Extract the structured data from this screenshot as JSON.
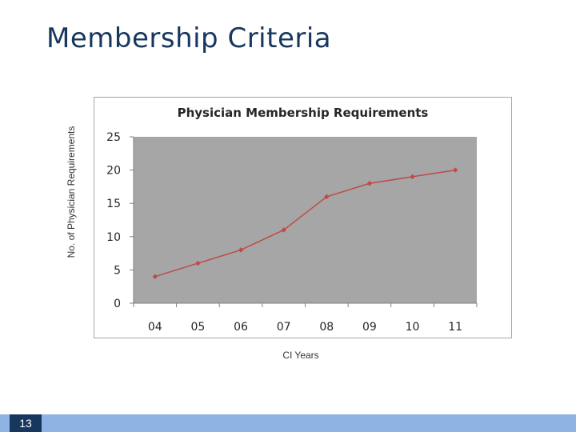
{
  "slide": {
    "title": "Membership Criteria",
    "number": "13"
  },
  "chart_data": {
    "type": "line",
    "title": "Physician Membership Requirements",
    "xlabel": "CI Years",
    "ylabel": "No. of Physician Requirements",
    "categories": [
      "04",
      "05",
      "06",
      "07",
      "08",
      "09",
      "10",
      "11"
    ],
    "series": [
      {
        "values": [
          4,
          6,
          8,
          11,
          16,
          18,
          19,
          20
        ]
      }
    ],
    "ylim": [
      0,
      25
    ],
    "yticks": [
      "0",
      "5",
      "10",
      "15",
      "20",
      "25"
    ],
    "grid": false,
    "legend": "none",
    "colors": {
      "plot_area": "#a6a6a6",
      "line": "#be4b48"
    }
  }
}
